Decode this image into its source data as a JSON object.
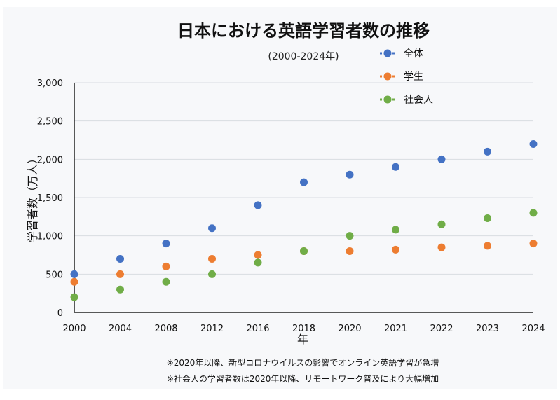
{
  "chart_data": {
    "type": "scatter",
    "title": "日本における英語学習者数の推移",
    "subtitle": "(2000-2024年)",
    "xlabel": "年",
    "ylabel": "学習者数（万人）",
    "categories": [
      "2000",
      "2004",
      "2008",
      "2012",
      "2016",
      "2018",
      "2020",
      "2021",
      "2022",
      "2023",
      "2024"
    ],
    "ylim": [
      0,
      3000
    ],
    "yticks": [
      0,
      500,
      1000,
      1500,
      2000,
      2500,
      3000
    ],
    "ytick_labels": [
      "0",
      "500",
      "1,000",
      "1,500",
      "2,000",
      "2,500",
      "3,000"
    ],
    "grid": true,
    "legend_position": "top-right",
    "series": [
      {
        "name": "全体",
        "color": "#4472c4",
        "values": [
          500,
          700,
          900,
          1100,
          1400,
          1700,
          1800,
          1900,
          2000,
          2100,
          2200
        ]
      },
      {
        "name": "学生",
        "color": "#ed7d31",
        "values": [
          400,
          500,
          600,
          700,
          750,
          800,
          800,
          820,
          850,
          870,
          900
        ]
      },
      {
        "name": "社会人",
        "color": "#70ad47",
        "values": [
          200,
          300,
          400,
          500,
          650,
          800,
          1000,
          1080,
          1150,
          1230,
          1300
        ]
      }
    ],
    "notes": [
      "※2020年以降、新型コロナウイルスの影響でオンライン英語学習が急増",
      "※社会人の学習者数は2020年以降、リモートワーク普及により大幅増加"
    ]
  }
}
